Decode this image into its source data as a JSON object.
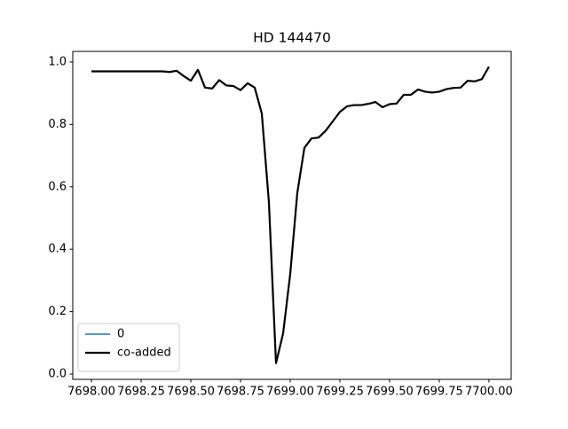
{
  "chart_data": {
    "type": "line",
    "title": "HD 144470",
    "x": [
      7698,
      7698.0357,
      7698.0714,
      7698.1071,
      7698.1429,
      7698.1786,
      7698.2143,
      7698.25,
      7698.2857,
      7698.3214,
      7698.3571,
      7698.3929,
      7698.4286,
      7698.4643,
      7698.5,
      7698.5357,
      7698.5714,
      7698.6071,
      7698.6429,
      7698.6786,
      7698.7143,
      7698.75,
      7698.7857,
      7698.8214,
      7698.8571,
      7698.8929,
      7698.9286,
      7698.9643,
      7699,
      7699.0357,
      7699.0714,
      7699.1071,
      7699.1429,
      7699.1786,
      7699.2143,
      7699.25,
      7699.2857,
      7699.3214,
      7699.3571,
      7699.3929,
      7699.4286,
      7699.4643,
      7699.5,
      7699.5357,
      7699.5714,
      7699.6071,
      7699.6429,
      7699.6786,
      7699.7143,
      7699.75,
      7699.7857,
      7699.8214,
      7699.8571,
      7699.8929,
      7699.9286,
      7699.9643,
      7700
    ],
    "series": [
      {
        "name": "0",
        "color": "#1f77b4",
        "width": 1.5,
        "values": [
          0.97,
          0.97,
          0.97,
          0.97,
          0.97,
          0.97,
          0.97,
          0.97,
          0.97,
          0.97,
          0.97,
          0.968,
          0.972,
          0.955,
          0.94,
          0.975,
          0.918,
          0.915,
          0.942,
          0.925,
          0.923,
          0.91,
          0.932,
          0.918,
          0.835,
          0.55,
          0.035,
          0.13,
          0.32,
          0.58,
          0.725,
          0.755,
          0.758,
          0.78,
          0.81,
          0.84,
          0.858,
          0.862,
          0.862,
          0.866,
          0.872,
          0.855,
          0.865,
          0.867,
          0.895,
          0.895,
          0.912,
          0.905,
          0.902,
          0.905,
          0.913,
          0.917,
          0.918,
          0.94,
          0.938,
          0.945,
          0.985
        ]
      },
      {
        "name": "co-added",
        "color": "#000000",
        "width": 2.2,
        "values": [
          0.97,
          0.97,
          0.97,
          0.97,
          0.97,
          0.97,
          0.97,
          0.97,
          0.97,
          0.97,
          0.97,
          0.968,
          0.972,
          0.955,
          0.94,
          0.975,
          0.918,
          0.915,
          0.942,
          0.925,
          0.923,
          0.91,
          0.932,
          0.918,
          0.835,
          0.55,
          0.035,
          0.13,
          0.32,
          0.58,
          0.725,
          0.755,
          0.758,
          0.78,
          0.81,
          0.84,
          0.858,
          0.862,
          0.862,
          0.866,
          0.872,
          0.855,
          0.865,
          0.867,
          0.895,
          0.895,
          0.912,
          0.905,
          0.902,
          0.905,
          0.913,
          0.917,
          0.918,
          0.94,
          0.938,
          0.945,
          0.985
        ]
      }
    ],
    "xlim": [
      7697.906,
      7700.112
    ],
    "ylim": [
      -0.017,
      1.034
    ],
    "xticks": [
      {
        "value": 7698,
        "label": "7698.00"
      },
      {
        "value": 7698.25,
        "label": "7698.25"
      },
      {
        "value": 7698.5,
        "label": "7698.50"
      },
      {
        "value": 7698.75,
        "label": "7698.75"
      },
      {
        "value": 7699,
        "label": "7699.00"
      },
      {
        "value": 7699.25,
        "label": "7699.25"
      },
      {
        "value": 7699.5,
        "label": "7699.50"
      },
      {
        "value": 7699.75,
        "label": "7699.75"
      },
      {
        "value": 7700,
        "label": "7700.00"
      }
    ],
    "yticks": [
      {
        "value": 0,
        "label": "0.0"
      },
      0.2,
      0.4,
      0.6,
      0.8,
      {
        "value": 1,
        "label": "1.0"
      }
    ],
    "grid": false,
    "legend": "lower left"
  }
}
